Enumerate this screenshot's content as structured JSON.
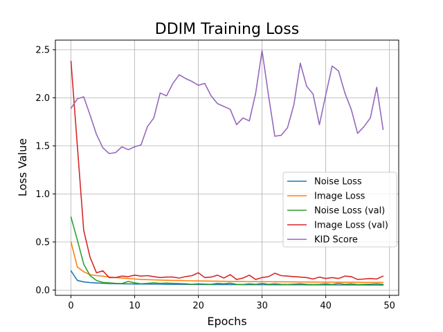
{
  "chart_data": {
    "type": "line",
    "title": "DDIM Training Loss",
    "xlabel": "Epochs",
    "ylabel": "Loss Value",
    "xlim": [
      -2.45,
      51.45
    ],
    "ylim": [
      -0.055,
      2.6
    ],
    "xticks": [
      0,
      10,
      20,
      30,
      40,
      50
    ],
    "yticks": [
      0.0,
      0.5,
      1.0,
      1.5,
      2.0,
      2.5
    ],
    "ytick_labels": [
      "0.0",
      "0.5",
      "1.0",
      "1.5",
      "2.0",
      "2.5"
    ],
    "grid": true,
    "legend_position": "center-right",
    "x": [
      0,
      1,
      2,
      3,
      4,
      5,
      6,
      7,
      8,
      9,
      10,
      11,
      12,
      13,
      14,
      15,
      16,
      17,
      18,
      19,
      20,
      21,
      22,
      23,
      24,
      25,
      26,
      27,
      28,
      29,
      30,
      31,
      32,
      33,
      34,
      35,
      36,
      37,
      38,
      39,
      40,
      41,
      42,
      43,
      44,
      45,
      46,
      47,
      48,
      49
    ],
    "series": [
      {
        "name": "Noise Loss",
        "color": "#1f77b4",
        "values": [
          0.2,
          0.1,
          0.085,
          0.078,
          0.074,
          0.07,
          0.068,
          0.066,
          0.065,
          0.064,
          0.063,
          0.062,
          0.062,
          0.061,
          0.061,
          0.06,
          0.06,
          0.06,
          0.059,
          0.059,
          0.058,
          0.058,
          0.058,
          0.057,
          0.057,
          0.057,
          0.057,
          0.056,
          0.056,
          0.056,
          0.056,
          0.055,
          0.055,
          0.055,
          0.055,
          0.055,
          0.055,
          0.054,
          0.054,
          0.054,
          0.054,
          0.054,
          0.053,
          0.053,
          0.053,
          0.053,
          0.053,
          0.052,
          0.052,
          0.052
        ]
      },
      {
        "name": "Image Loss",
        "color": "#ff7f0e",
        "values": [
          0.5,
          0.24,
          0.19,
          0.16,
          0.15,
          0.145,
          0.135,
          0.13,
          0.125,
          0.12,
          0.115,
          0.11,
          0.108,
          0.106,
          0.104,
          0.102,
          0.1,
          0.099,
          0.097,
          0.096,
          0.095,
          0.094,
          0.093,
          0.092,
          0.091,
          0.09,
          0.09,
          0.089,
          0.088,
          0.088,
          0.087,
          0.087,
          0.086,
          0.086,
          0.085,
          0.085,
          0.084,
          0.084,
          0.083,
          0.083,
          0.082,
          0.082,
          0.082,
          0.081,
          0.081,
          0.081,
          0.08,
          0.08,
          0.08,
          0.08
        ]
      },
      {
        "name": "Noise Loss (val)",
        "color": "#2ca02c",
        "values": [
          0.76,
          0.52,
          0.27,
          0.15,
          0.1,
          0.08,
          0.075,
          0.07,
          0.068,
          0.09,
          0.075,
          0.065,
          0.07,
          0.075,
          0.07,
          0.072,
          0.07,
          0.068,
          0.065,
          0.06,
          0.065,
          0.062,
          0.06,
          0.07,
          0.065,
          0.072,
          0.06,
          0.058,
          0.065,
          0.06,
          0.07,
          0.06,
          0.065,
          0.06,
          0.058,
          0.062,
          0.065,
          0.06,
          0.058,
          0.06,
          0.065,
          0.058,
          0.07,
          0.06,
          0.065,
          0.058,
          0.06,
          0.062,
          0.065,
          0.06
        ]
      },
      {
        "name": "Image Loss (val)",
        "color": "#d62728",
        "values": [
          2.38,
          1.5,
          0.62,
          0.34,
          0.18,
          0.2,
          0.13,
          0.13,
          0.145,
          0.14,
          0.155,
          0.145,
          0.15,
          0.14,
          0.13,
          0.135,
          0.135,
          0.125,
          0.14,
          0.15,
          0.18,
          0.13,
          0.135,
          0.155,
          0.125,
          0.16,
          0.11,
          0.125,
          0.155,
          0.11,
          0.13,
          0.14,
          0.175,
          0.15,
          0.145,
          0.14,
          0.135,
          0.13,
          0.115,
          0.135,
          0.12,
          0.13,
          0.12,
          0.145,
          0.14,
          0.11,
          0.115,
          0.12,
          0.115,
          0.145
        ]
      },
      {
        "name": "KID Score",
        "color": "#9467bd",
        "values": [
          1.89,
          1.99,
          2.01,
          1.82,
          1.62,
          1.48,
          1.42,
          1.43,
          1.49,
          1.46,
          1.49,
          1.51,
          1.7,
          1.79,
          2.05,
          2.02,
          2.15,
          2.24,
          2.2,
          2.17,
          2.13,
          2.15,
          2.02,
          1.94,
          1.91,
          1.88,
          1.72,
          1.79,
          1.76,
          2.05,
          2.49,
          2.03,
          1.6,
          1.61,
          1.69,
          1.93,
          2.36,
          2.12,
          2.04,
          1.72,
          2.03,
          2.33,
          2.28,
          2.05,
          1.88,
          1.63,
          1.7,
          1.79,
          2.11,
          1.67
        ]
      }
    ]
  }
}
